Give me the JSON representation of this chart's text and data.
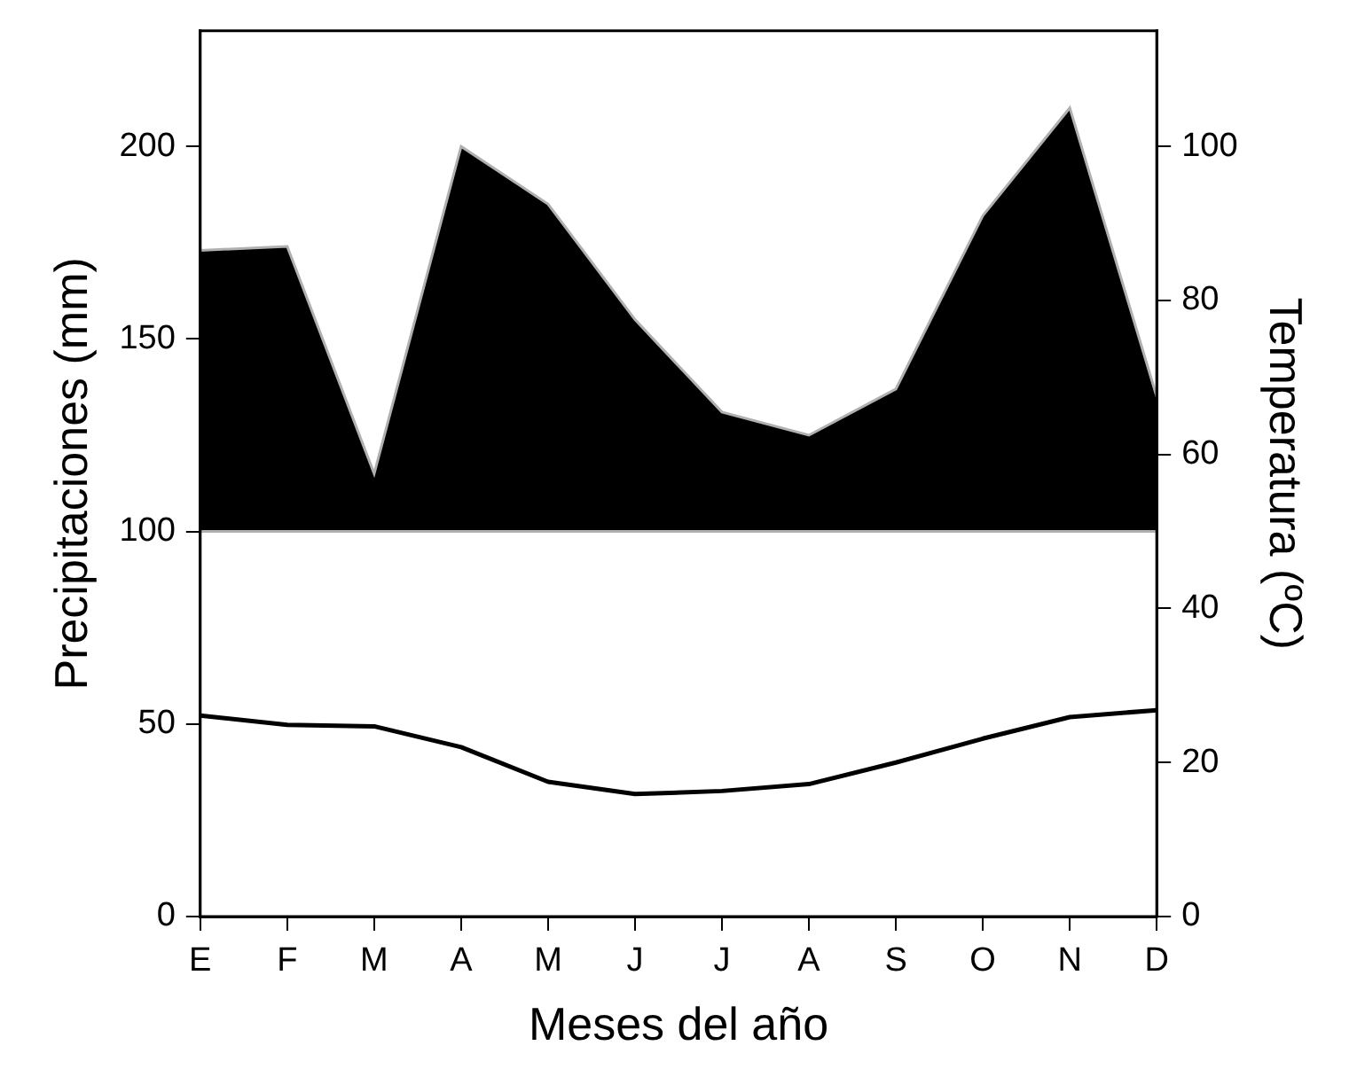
{
  "chart_data": {
    "type": "area",
    "xlabel": "Meses del año",
    "ylabel": "Precipitaciones (mm)",
    "y2label": "Temperatura (ºC)",
    "categories": [
      "E",
      "F",
      "M",
      "A",
      "M",
      "J",
      "J",
      "A",
      "S",
      "O",
      "N",
      "D"
    ],
    "series": [
      {
        "type": "area",
        "color": "#000000",
        "values": [
          173,
          174,
          115,
          200,
          185,
          155,
          131,
          125,
          137,
          182,
          210,
          135
        ]
      },
      {
        "type": "line",
        "axis": "y2",
        "color": "#000000",
        "values": [
          26.1,
          24.9,
          24.7,
          22,
          17.5,
          15.9,
          16.3,
          17.2,
          20,
          23.1,
          25.9,
          26.8
        ]
      }
    ],
    "ylim": [
      0,
      230
    ],
    "yticks": [
      0,
      50,
      100,
      150,
      200
    ],
    "y2lim": [
      0,
      115
    ],
    "y2ticks": [
      0,
      20,
      40,
      60,
      80,
      100
    ],
    "ref_lines": [
      {
        "axis": "y",
        "value": 100,
        "color": "#b0b0b0"
      }
    ],
    "grid": false,
    "legend": false,
    "marker": "none",
    "line_style": "solid"
  }
}
